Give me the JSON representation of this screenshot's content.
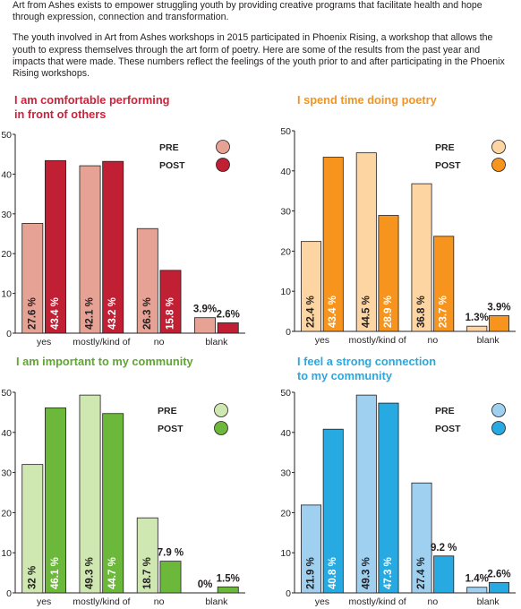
{
  "intro": {
    "p1": "Art from Ashes exists to empower struggling youth by providing creative programs that facilitate health and hope through expression, connection and transformation.",
    "p2": "The youth involved in Art from Ashes workshops in 2015 participated in Phoenix Rising, a workshop that allows the youth to express themselves through the art form of poetry. Here are some of the results from the past year and impacts that were made. These numbers reflect the feelings of the youth prior to and after participating in the Phoenix Rising workshops."
  },
  "chart_data": [
    {
      "type": "bar",
      "title_lines": [
        "I am comfortable performing",
        "in front of others"
      ],
      "categories": [
        "yes",
        "mostly/kind of",
        "no",
        "blank"
      ],
      "ylim": [
        0,
        50
      ],
      "yticks": [
        "0",
        "10",
        "20",
        "30",
        "40",
        "50"
      ],
      "legend": [
        "PRE",
        "POST"
      ],
      "colors": {
        "title": "#d1203a",
        "pre": "#e6a294",
        "post": "#c11f34"
      },
      "series": [
        {
          "name": "PRE",
          "values": [
            27.6,
            42.1,
            26.3,
            3.9
          ],
          "labels": [
            "27.6 %",
            "42.1 %",
            "26.3 %",
            "3.9%"
          ]
        },
        {
          "name": "POST",
          "values": [
            43.4,
            43.2,
            15.8,
            2.6
          ],
          "labels": [
            "43.4 %",
            "43.2 %",
            "15.8 %",
            "2.6%"
          ]
        }
      ]
    },
    {
      "type": "bar",
      "title_lines": [
        "I spend time doing poetry"
      ],
      "categories": [
        "yes",
        "mostly/kind of",
        "no",
        "blank"
      ],
      "ylim": [
        0,
        50
      ],
      "yticks": [
        "0",
        "10",
        "20",
        "30",
        "40",
        "50"
      ],
      "legend": [
        "PRE",
        "POST"
      ],
      "colors": {
        "title": "#f39421",
        "pre": "#fcd5a3",
        "post": "#f7941d"
      },
      "series": [
        {
          "name": "PRE",
          "values": [
            22.4,
            44.5,
            36.8,
            1.3
          ],
          "labels": [
            "22.4 %",
            "44.5 %",
            "36.8 %",
            "1.3%"
          ]
        },
        {
          "name": "POST",
          "values": [
            43.4,
            28.9,
            23.7,
            3.9
          ],
          "labels": [
            "43.4 %",
            "28.9 %",
            "23.7 %",
            "3.9%"
          ]
        }
      ]
    },
    {
      "type": "bar",
      "title_lines": [
        "I am important to my community"
      ],
      "categories": [
        "yes",
        "mostly/kind of",
        "no",
        "blank"
      ],
      "ylim": [
        0,
        50
      ],
      "yticks": [
        "0",
        "10",
        "20",
        "30",
        "40",
        "50"
      ],
      "legend": [
        "PRE",
        "POST"
      ],
      "colors": {
        "title": "#5fa632",
        "pre": "#cfe7b0",
        "post": "#6cb83a"
      },
      "series": [
        {
          "name": "PRE",
          "values": [
            32,
            49.3,
            18.7,
            0
          ],
          "labels": [
            "32 %",
            "49.3 %",
            "18.7 %",
            "0%"
          ]
        },
        {
          "name": "POST",
          "values": [
            46.1,
            44.7,
            7.9,
            1.5
          ],
          "labels": [
            "46.1 %",
            "44.7 %",
            "7.9 %",
            "1.5%"
          ]
        }
      ]
    },
    {
      "type": "bar",
      "title_lines": [
        "I feel a strong connection",
        "to my community"
      ],
      "categories": [
        "yes",
        "mostly/kind of",
        "no",
        "blank"
      ],
      "ylim": [
        0,
        50
      ],
      "yticks": [
        "0",
        "10",
        "20",
        "30",
        "40",
        "50"
      ],
      "legend": [
        "PRE",
        "POST"
      ],
      "colors": {
        "title": "#27a9e1",
        "pre": "#9fd0ef",
        "post": "#27a9e1"
      },
      "series": [
        {
          "name": "PRE",
          "values": [
            21.9,
            49.3,
            27.4,
            1.4
          ],
          "labels": [
            "21.9 %",
            "49.3 %",
            "27.4 %",
            "1.4%"
          ]
        },
        {
          "name": "POST",
          "values": [
            40.8,
            47.3,
            9.2,
            2.6
          ],
          "labels": [
            "40.8 %",
            "47.3 %",
            "9.2 %",
            "2.6%"
          ]
        }
      ]
    }
  ]
}
